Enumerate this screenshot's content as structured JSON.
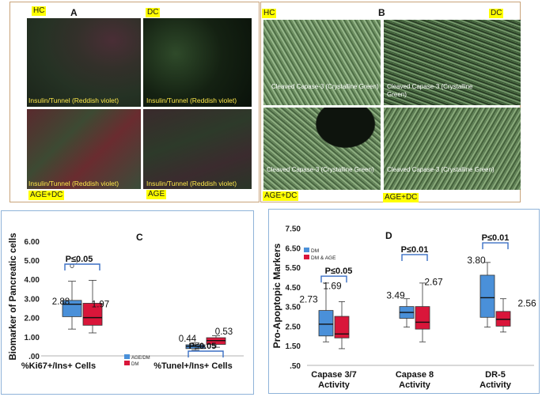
{
  "panelA": {
    "label": "A",
    "tags": {
      "hc": "HC",
      "dc": "DC",
      "age_dc": "AGE+DC",
      "age": "AGE"
    },
    "captions": {
      "hc": "Insulin/Tunnel (Reddish violet)",
      "dc": "Insulin/Tunnel (Reddish violet)",
      "age_dc": "Insulin/Tunnel (Reddish violet)",
      "age": "Insulin/Tunnel (Reddish violet)"
    }
  },
  "panelB": {
    "label": "B",
    "tags": {
      "hc": "HC",
      "dc": "DC",
      "age_dc_left": "AGE+DC",
      "age_dc_right": "AGE+DC"
    },
    "captions": {
      "tl": "Cleaved Capase-3 (Crystalline Green)",
      "tr": "Cleaved Capase-3 (Crystalline Green)",
      "bl": "Cleaved Capase-3 (Crystalline Green)",
      "br": "Cleaved Capase-3 (Crystalline Green)"
    }
  },
  "colors": {
    "dm": "#4a90d9",
    "dm_age": "#d9163a",
    "bracket": "#3a6fc4"
  },
  "chart_data": [
    {
      "type": "box",
      "panel_label": "C",
      "ylabel": "Biomarker of Pancreatic cells",
      "yticks": [
        ".00",
        "1.00",
        "2.00",
        "3.00",
        "4.00",
        "5.00",
        "6.00"
      ],
      "ylim": [
        0,
        6.2
      ],
      "categories": [
        "%Ki67+/Ins+ Cells",
        "%Tunel+/Ins+ Cells"
      ],
      "legend": [
        "AGE/DM",
        "DM"
      ],
      "outlier_label": "2",
      "series": [
        {
          "name": "AGE/DM",
          "boxes": [
            {
              "min": 1.4,
              "q1": 2.05,
              "median": 2.7,
              "q3": 2.9,
              "max": 3.9,
              "label": "2.88"
            },
            {
              "min": 0.3,
              "q1": 0.38,
              "median": 0.5,
              "q3": 0.58,
              "max": 0.68,
              "label": "0.44"
            }
          ]
        },
        {
          "name": "DM",
          "boxes": [
            {
              "min": 1.2,
              "q1": 1.6,
              "median": 2.0,
              "q3": 2.75,
              "max": 3.95,
              "label": "1.97"
            },
            {
              "min": 0.45,
              "q1": 0.6,
              "median": 0.8,
              "q3": 0.95,
              "max": 1.05,
              "label": "0.53"
            }
          ]
        }
      ],
      "outliers": [
        {
          "series": 0,
          "category": 0,
          "value": 4.7
        }
      ],
      "significance": [
        {
          "category": 0,
          "text": "P≤0.05"
        },
        {
          "category": 1,
          "text": "P≤0.05"
        }
      ]
    },
    {
      "type": "box",
      "panel_label": "D",
      "ylabel": "Pro-Apoptopic Markers",
      "yticks": [
        ".50",
        "1.50",
        "2.50",
        "3.50",
        "4.50",
        "5.50",
        "6.50",
        "7.50"
      ],
      "ytick_values": [
        0.5,
        1.5,
        2.5,
        3.5,
        4.5,
        5.5,
        6.5,
        7.5
      ],
      "ylim": [
        0.5,
        7.6
      ],
      "categories": [
        "Capase 3/7 Activity",
        "Capase 8 Activity",
        "DR-5 Activity"
      ],
      "legend": [
        "DM",
        "DM & AGE"
      ],
      "series": [
        {
          "name": "DM",
          "boxes": [
            {
              "min": 1.7,
              "q1": 2.0,
              "median": 2.6,
              "q3": 3.3,
              "max": 4.7,
              "label": "2.73"
            },
            {
              "min": 2.45,
              "q1": 2.9,
              "median": 3.2,
              "q3": 3.5,
              "max": 3.9,
              "label": "3.49"
            },
            {
              "min": 2.45,
              "q1": 2.95,
              "median": 3.95,
              "q3": 5.1,
              "max": 5.75,
              "label": "3.80"
            }
          ]
        },
        {
          "name": "DM & AGE",
          "boxes": [
            {
              "min": 1.35,
              "q1": 1.9,
              "median": 2.1,
              "q3": 3.0,
              "max": 3.75,
              "label": "1.69"
            },
            {
              "min": 1.7,
              "q1": 2.35,
              "median": 2.7,
              "q3": 3.5,
              "max": 4.7,
              "label": "2.67"
            },
            {
              "min": 2.2,
              "q1": 2.5,
              "median": 2.85,
              "q3": 3.25,
              "max": 3.9,
              "label": "2.56"
            }
          ]
        }
      ],
      "significance": [
        {
          "category": 0,
          "text": "P≤0.05"
        },
        {
          "category": 1,
          "text": "P≤0.01"
        },
        {
          "category": 2,
          "text": "P≤0.01"
        }
      ]
    }
  ]
}
